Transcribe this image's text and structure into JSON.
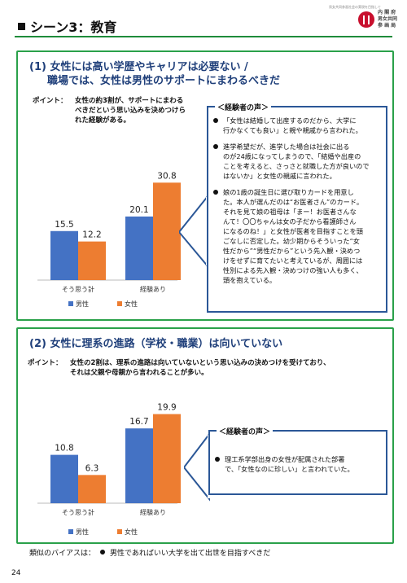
{
  "header": {
    "title": "シーン3：教育",
    "logo_tagline": "男女共同参画社会の実現を目指して",
    "logo_lines": [
      "内 閣 府",
      "男女共同",
      "参 画 局"
    ]
  },
  "section1": {
    "title_line1": "(1) 女性には高い学歴やキャリアは必要ない /",
    "title_line2": "職場では、女性は男性のサポートにまわるべきだ",
    "point_label": "ポイント：",
    "point_lines": [
      "女性の約3割が、サポートにまわる",
      "べきだという思い込みを決めつけら",
      "れた経験がある。"
    ],
    "voice_title": "＜経験者の声＞",
    "voices": [
      {
        "lines": [
          "「女性は結婚して出産するのだから、大学に",
          "行かなくても良い」と親や親戚から言われた。"
        ]
      },
      {
        "lines": [
          "進学希望だが、進学した場合は社会に出る",
          "のが24歳になってしまうので、「結婚や出産の",
          "ことを考えると、さっさと就職した方が良いので",
          "はないか」と女性の親戚に言われた。"
        ]
      },
      {
        "lines": [
          "娘の1歳の誕生日に選び取りカードを用意し",
          "た。本人が選んだのは“お医者さん”のカード。",
          "それを見て娘の祖母は「まー！お医者さんな",
          "んて！〇〇ちゃんは女の子だから看護師さん",
          "になるのね！」と女性が医者を目指すことを頭",
          "ごなしに否定した。幼少期からそういった“女",
          "性だから”“男性だから”という先入観・決めつ",
          "けをせずに育てたいと考えているが、周囲には",
          "性別による先入観・決めつけの強い人も多く、",
          "頭を抱えている。"
        ]
      }
    ]
  },
  "section2": {
    "title": "(2) 女性に理系の進路（学校・職業）は向いていない",
    "point_label": "ポイント：",
    "point_lines": [
      "女性の2割は、理系の進路は向いていないという思い込みの決めつけを受けており、",
      "それは父親や母親から言われることが多い。"
    ],
    "voice_title": "＜経験者の声＞",
    "voices": [
      {
        "lines": [
          "理工系学部出身の女性が配属された部署",
          "で、「女性なのに珍しい」と言われていた。"
        ]
      }
    ]
  },
  "footer": {
    "bias_label": "類似のバイアスは：",
    "bias_text": "男性であればいい大学を出て出世を目指すべきだ",
    "page_number": "24"
  },
  "colors": {
    "male": "#4472c4",
    "female": "#ed7d31",
    "frame": "#2aa14a",
    "title": "#1f3f7a",
    "voice_border": "#2b5797"
  },
  "chart_data": [
    {
      "type": "bar",
      "categories": [
        "そう思う計",
        "経験あり"
      ],
      "series": [
        {
          "name": "男性",
          "values": [
            15.5,
            20.1
          ]
        },
        {
          "name": "女性",
          "values": [
            12.2,
            30.8
          ]
        }
      ],
      "ylim": [
        0,
        35
      ],
      "legend": "bottom"
    },
    {
      "type": "bar",
      "categories": [
        "そう思う計",
        "経験あり"
      ],
      "series": [
        {
          "name": "男性",
          "values": [
            10.8,
            16.7
          ]
        },
        {
          "name": "女性",
          "values": [
            6.3,
            19.9
          ]
        }
      ],
      "ylim": [
        0,
        22
      ],
      "legend": "bottom"
    }
  ]
}
